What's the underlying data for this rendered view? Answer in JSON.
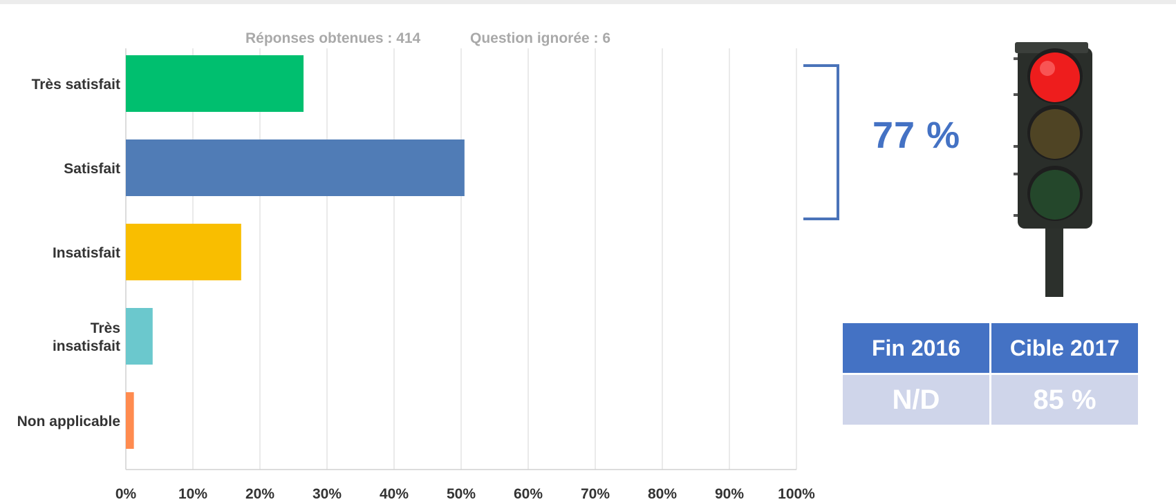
{
  "chart_data": {
    "type": "bar",
    "orientation": "horizontal",
    "categories": [
      "Très satisfait",
      "Satisfait",
      "Insatisfait",
      "Très insatisfait",
      "Non applicable"
    ],
    "category_lines": [
      [
        "Très satisfait"
      ],
      [
        "Satisfait"
      ],
      [
        "Insatisfait"
      ],
      [
        "Très",
        "insatisfait"
      ],
      [
        "Non applicable"
      ]
    ],
    "values": [
      26.5,
      50.5,
      17.2,
      4.0,
      1.2
    ],
    "colors": [
      "#00bf6f",
      "#507cb6",
      "#f9be00",
      "#6bc8cd",
      "#ff8b4f"
    ],
    "xlim": [
      0,
      100
    ],
    "xticks": [
      0,
      10,
      20,
      30,
      40,
      50,
      60,
      70,
      80,
      90,
      100
    ],
    "xtick_labels": [
      "0%",
      "10%",
      "20%",
      "30%",
      "40%",
      "50%",
      "60%",
      "70%",
      "80%",
      "90%",
      "100%"
    ],
    "grid": true,
    "responses_label": "Réponses obtenues : 414",
    "ignored_label": "Question ignorée : 6"
  },
  "summary": {
    "combined_pct": "77 %",
    "table": {
      "headers": [
        "Fin 2016",
        "Cible 2017"
      ],
      "values": [
        "N/D",
        "85 %"
      ]
    },
    "traffic_light": {
      "active": "red",
      "icon": "traffic-light-icon"
    }
  }
}
